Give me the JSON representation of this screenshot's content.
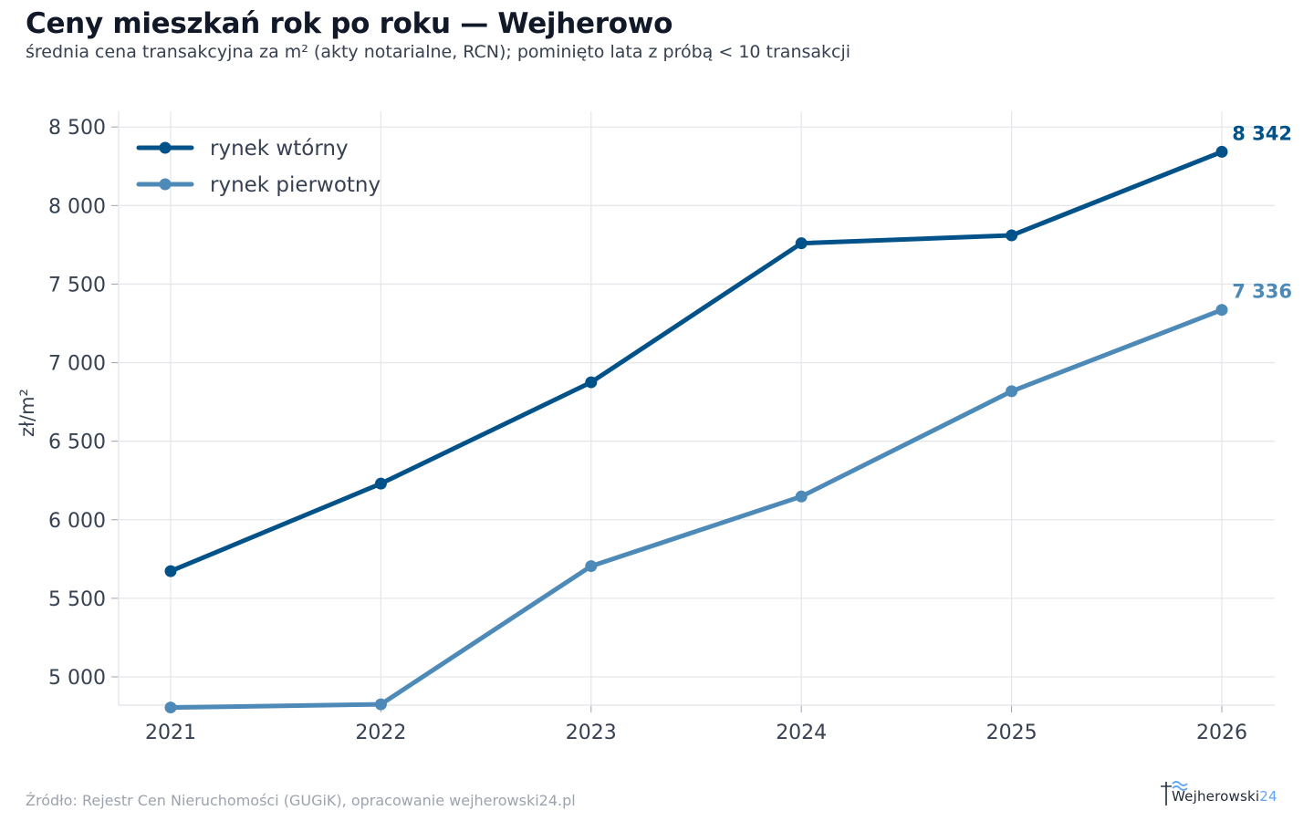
{
  "title": "Ceny mieszkań rok po roku — Wejherowo",
  "subtitle": "średnia cena transakcyjna za m² (akty notarialne, RCN); pominięto lata z próbą < 10 transakcji",
  "footer": "Źródło: Rejestr Cen Nieruchomości (GUGiK), opracowanie wejherowski24.pl",
  "logo": {
    "text": "Wejherowski",
    "num": "24"
  },
  "colors": {
    "secondary": "#02528a",
    "primary": "#4d8ab8",
    "grid": "#e5e7eb"
  },
  "chart_data": {
    "type": "line",
    "x": [
      2021,
      2022,
      2023,
      2024,
      2025,
      2026
    ],
    "ylabel": "zł/m²",
    "xlabel": "",
    "ylim": [
      4820,
      8600
    ],
    "yticks": [
      5000,
      5500,
      6000,
      6500,
      7000,
      7500,
      8000,
      8500
    ],
    "ytick_labels": [
      "5 000",
      "5 500",
      "6 000",
      "6 500",
      "7 000",
      "7 500",
      "8 000",
      "8 500"
    ],
    "grid": true,
    "legend": "top-left",
    "series": [
      {
        "name": "rynek wtórny",
        "color": "#02528a",
        "values": [
          5673,
          6230,
          6875,
          7760,
          7810,
          8342
        ],
        "end_label": "8 342"
      },
      {
        "name": "rynek pierwotny",
        "color": "#4d8ab8",
        "values": [
          4805,
          4825,
          5705,
          6148,
          6818,
          7336
        ],
        "end_label": "7 336"
      }
    ]
  }
}
